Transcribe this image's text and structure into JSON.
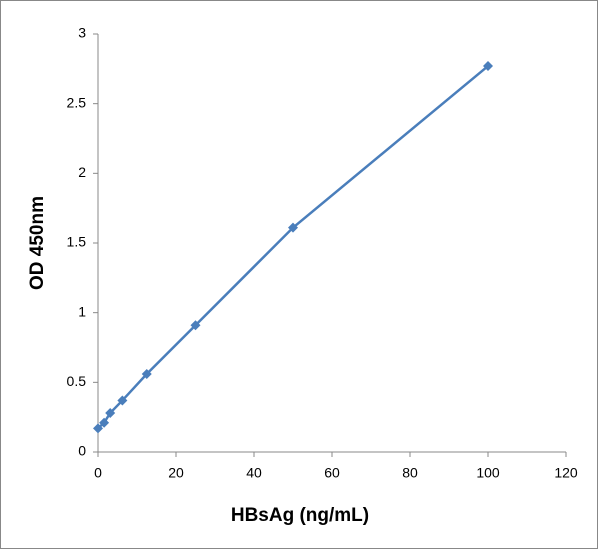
{
  "chart_data": {
    "type": "line",
    "x_label": "HBsAg (ng/mL)",
    "y_label": "OD 450nm",
    "x": [
      0,
      1.5625,
      3.125,
      6.25,
      12.5,
      25,
      50,
      100
    ],
    "values": [
      0.17,
      0.21,
      0.28,
      0.37,
      0.56,
      0.91,
      1.61,
      2.77
    ],
    "color": "#4a7ebb",
    "marker": "diamond",
    "xlim": [
      0,
      120
    ],
    "xticks": [
      0,
      20,
      40,
      60,
      80,
      100,
      120
    ],
    "ylim": [
      0,
      3
    ],
    "yticks": [
      0,
      0.5,
      1,
      1.5,
      2,
      2.5,
      3
    ],
    "grid": false
  }
}
